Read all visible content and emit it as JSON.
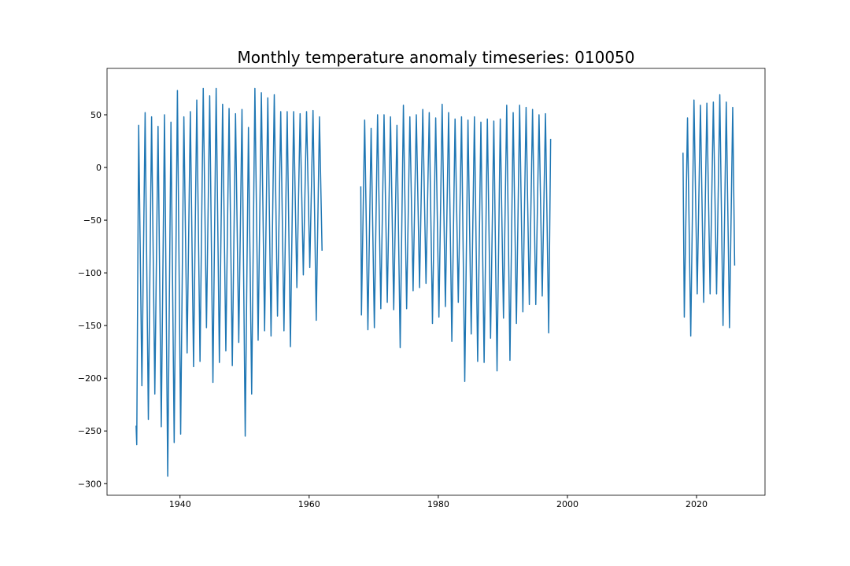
{
  "chart_data": {
    "type": "line",
    "title": "Monthly temperature anomaly timeseries: 010050",
    "x": [
      1933.2,
      1933.3,
      1933.6,
      1934.1,
      1934.6,
      1935.1,
      1935.6,
      1936.1,
      1936.6,
      1937.1,
      1937.6,
      1938.1,
      1938.6,
      1939.1,
      1939.6,
      1940.1,
      1940.6,
      1941.1,
      1941.6,
      1942.1,
      1942.6,
      1943.1,
      1943.6,
      1944.1,
      1944.6,
      1945.1,
      1945.6,
      1946.1,
      1946.6,
      1947.1,
      1947.6,
      1948.1,
      1948.6,
      1949.1,
      1949.6,
      1950.1,
      1950.6,
      1951.1,
      1951.6,
      1952.1,
      1952.6,
      1953.1,
      1953.6,
      1954.1,
      1954.6,
      1955.1,
      1955.6,
      1956.1,
      1956.6,
      1957.1,
      1957.6,
      1958.1,
      1958.6,
      1959.1,
      1959.6,
      1960.1,
      1960.6,
      1961.1,
      1961.6,
      1962.0,
      1965,
      1968.0,
      1968.1,
      1968.6,
      1969.1,
      1969.6,
      1970.1,
      1970.6,
      1971.1,
      1971.6,
      1972.1,
      1972.6,
      1973.1,
      1973.6,
      1974.1,
      1974.6,
      1975.1,
      1975.6,
      1976.1,
      1976.6,
      1977.1,
      1977.6,
      1978.1,
      1978.6,
      1979.1,
      1979.6,
      1980.1,
      1980.6,
      1981.1,
      1981.6,
      1982.1,
      1982.6,
      1983.1,
      1983.6,
      1984.1,
      1984.6,
      1985.1,
      1985.6,
      1986.1,
      1986.6,
      1987.1,
      1987.6,
      1988.1,
      1988.6,
      1989.1,
      1989.6,
      1990.1,
      1990.6,
      1991.1,
      1991.6,
      1992.1,
      1992.6,
      1993.1,
      1993.6,
      1994.1,
      1994.6,
      1995.1,
      1995.6,
      1996.1,
      1996.6,
      1997.1,
      1997.4,
      2005,
      2017.9,
      2018.1,
      2018.6,
      2019.1,
      2019.6,
      2020.1,
      2020.6,
      2021.1,
      2021.6,
      2022.1,
      2022.6,
      2023.1,
      2023.6,
      2024.1,
      2024.6,
      2025.1,
      2025.6,
      2025.9
    ],
    "series": [
      {
        "color": "#1f77b4",
        "values": [
          -245,
          -263,
          40,
          -207,
          52,
          -239,
          48,
          -215,
          39,
          -246,
          50,
          -293,
          43,
          -261,
          73,
          -253,
          48,
          -176,
          53,
          -189,
          64,
          -184,
          75,
          -152,
          68,
          -204,
          75,
          -185,
          60,
          -174,
          56,
          -188,
          51,
          -166,
          55,
          -255,
          38,
          -215,
          75,
          -164,
          71,
          -155,
          66,
          -160,
          69,
          -141,
          53,
          -155,
          53,
          -170,
          53,
          -114,
          51,
          -102,
          53,
          -95,
          54,
          -145,
          48,
          -79,
          null,
          -18,
          -140,
          45,
          -154,
          37,
          -152,
          50,
          -134,
          50,
          -128,
          48,
          -135,
          40,
          -171,
          59,
          -134,
          48,
          -117,
          50,
          -114,
          55,
          -110,
          52,
          -148,
          47,
          -142,
          60,
          -132,
          52,
          -165,
          46,
          -128,
          48,
          -203,
          45,
          -158,
          48,
          -184,
          43,
          -185,
          46,
          -162,
          44,
          -193,
          46,
          -143,
          59,
          -183,
          52,
          -148,
          59,
          -137,
          57,
          -130,
          55,
          -130,
          50,
          -122,
          51,
          -157,
          27,
          null,
          14,
          -142,
          47,
          -160,
          64,
          -120,
          59,
          -128,
          61,
          -120,
          62,
          -120,
          69,
          -150,
          62,
          -152,
          57,
          -93
        ]
      }
    ],
    "xlim": [
      1928.7,
      2030.6
    ],
    "ylim": [
      -311,
      94
    ],
    "xticks": [
      1940,
      1960,
      1980,
      2000,
      2020
    ],
    "yticks": [
      {
        "value": -300,
        "label": "−300"
      },
      {
        "value": -250,
        "label": "−250"
      },
      {
        "value": -200,
        "label": "−200"
      },
      {
        "value": -150,
        "label": "−150"
      },
      {
        "value": -100,
        "label": "−100"
      },
      {
        "value": -50,
        "label": "−50"
      },
      0,
      50
    ]
  }
}
